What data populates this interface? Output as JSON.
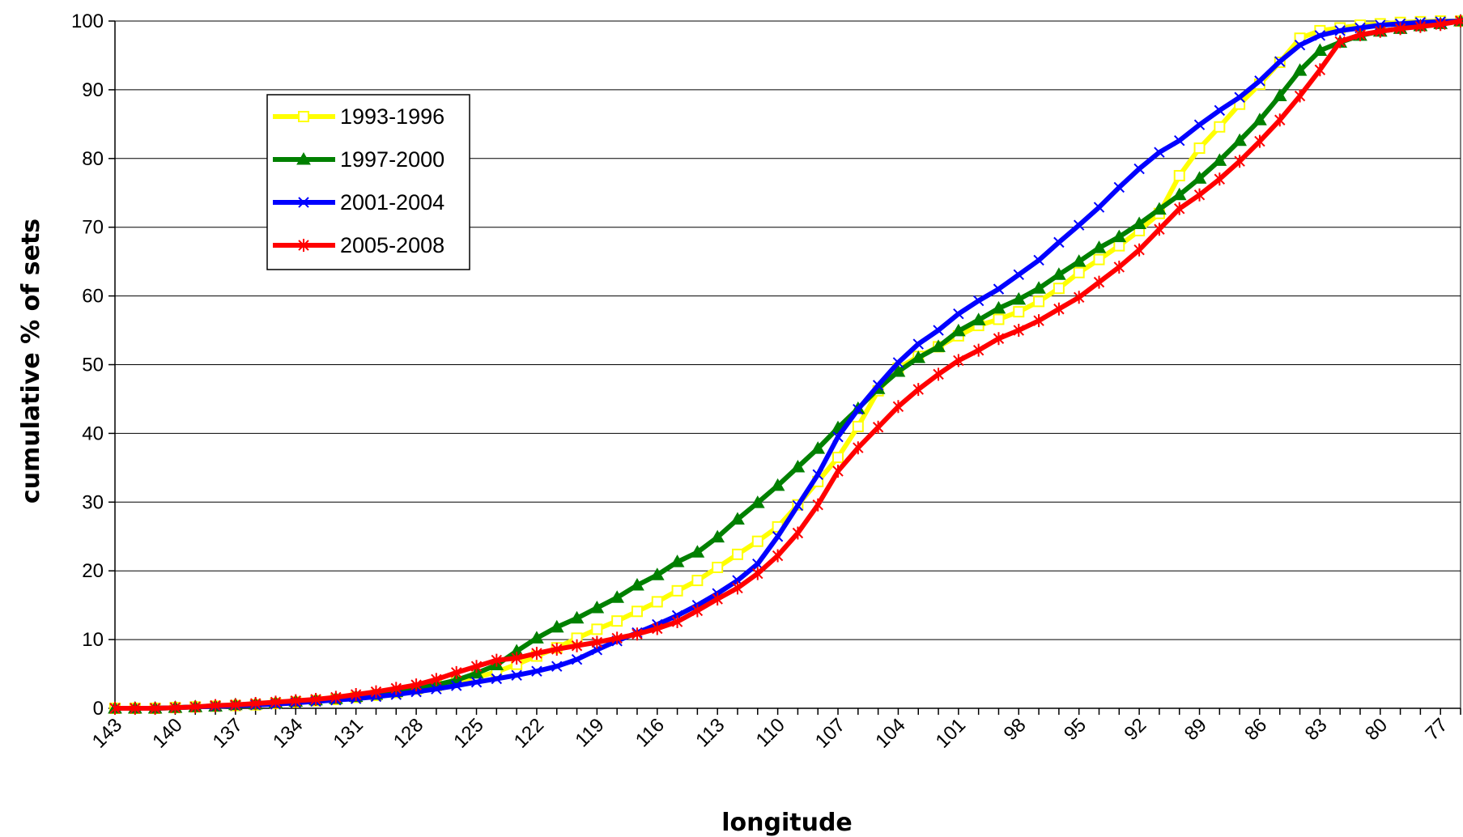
{
  "chart_data": {
    "type": "line",
    "xlabel": "longitude",
    "ylabel": "cumulative % of sets",
    "x_reversed": true,
    "xlim": [
      143,
      76
    ],
    "ylim": [
      0,
      100
    ],
    "yticks": [
      0,
      10,
      20,
      30,
      40,
      50,
      60,
      70,
      80,
      90,
      100
    ],
    "xticks": [
      143,
      140,
      137,
      134,
      131,
      128,
      125,
      122,
      119,
      116,
      113,
      110,
      107,
      104,
      101,
      98,
      95,
      92,
      89,
      86,
      83,
      80,
      77
    ],
    "grid": "horizontal",
    "legend_position": "upper-left",
    "x": [
      143,
      142,
      141,
      140,
      139,
      138,
      137,
      136,
      135,
      134,
      133,
      132,
      131,
      130,
      129,
      128,
      127,
      126,
      125,
      124,
      123,
      122,
      121,
      120,
      119,
      118,
      117,
      116,
      115,
      114,
      113,
      112,
      111,
      110,
      109,
      108,
      107,
      106,
      105,
      104,
      103,
      102,
      101,
      100,
      99,
      98,
      97,
      96,
      95,
      94,
      93,
      92,
      91,
      90,
      89,
      88,
      87,
      86,
      85,
      84,
      83,
      82,
      81,
      80,
      79,
      78,
      77,
      76
    ],
    "series": [
      {
        "name": "1993-1996",
        "color": "#ffff00",
        "marker": "square",
        "values": [
          0,
          0,
          0,
          0.1,
          0.2,
          0.3,
          0.4,
          0.5,
          0.7,
          0.9,
          1.1,
          1.3,
          1.6,
          1.9,
          2.3,
          2.8,
          3.3,
          3.9,
          4.5,
          5.3,
          6.4,
          7.6,
          8.8,
          10.2,
          11.5,
          12.7,
          14.1,
          15.5,
          17.1,
          18.6,
          20.5,
          22.4,
          24.3,
          26.4,
          29.6,
          33.0,
          36.5,
          41.0,
          46.2,
          49.5,
          51.2,
          52.6,
          54.2,
          55.7,
          56.6,
          57.7,
          59.2,
          61.1,
          63.4,
          65.3,
          67.3,
          69.5,
          72.0,
          77.5,
          81.5,
          84.6,
          87.9,
          90.8,
          94.0,
          97.5,
          98.6,
          99.0,
          99.4,
          99.6,
          99.8,
          99.9,
          100,
          100
        ]
      },
      {
        "name": "1997-2000",
        "color": "#008000",
        "marker": "triangle",
        "values": [
          0,
          0,
          0,
          0.1,
          0.2,
          0.3,
          0.5,
          0.6,
          0.8,
          1.0,
          1.2,
          1.4,
          1.7,
          2.0,
          2.4,
          2.9,
          3.4,
          4.1,
          5.1,
          6.3,
          8.3,
          10.2,
          11.8,
          13.1,
          14.6,
          16.1,
          17.9,
          19.4,
          21.3,
          22.7,
          24.9,
          27.5,
          29.9,
          32.4,
          35.1,
          37.8,
          40.8,
          43.6,
          46.5,
          49.0,
          51.0,
          52.6,
          54.9,
          56.5,
          58.2,
          59.5,
          61.1,
          63.1,
          65.0,
          67.0,
          68.6,
          70.5,
          72.6,
          74.7,
          77.1,
          79.7,
          82.6,
          85.6,
          89.1,
          92.8,
          95.7,
          96.9,
          97.9,
          98.5,
          98.9,
          99.3,
          99.6,
          100
        ]
      },
      {
        "name": "2001-2004",
        "color": "#0000ff",
        "marker": "x",
        "values": [
          0,
          0,
          0,
          0.1,
          0.2,
          0.3,
          0.4,
          0.5,
          0.6,
          0.8,
          1.0,
          1.2,
          1.4,
          1.7,
          2.0,
          2.4,
          2.8,
          3.3,
          3.8,
          4.3,
          4.8,
          5.4,
          6.1,
          7.1,
          8.5,
          9.8,
          11.0,
          12.2,
          13.5,
          15.0,
          16.7,
          18.6,
          21.0,
          25.0,
          29.5,
          34.0,
          39.5,
          43.5,
          47.0,
          50.3,
          53.0,
          55.0,
          57.4,
          59.3,
          61.0,
          63.1,
          65.2,
          67.8,
          70.3,
          72.9,
          75.8,
          78.5,
          80.9,
          82.6,
          84.9,
          87.0,
          88.9,
          91.3,
          94.1,
          96.5,
          97.9,
          98.6,
          99.0,
          99.4,
          99.6,
          99.8,
          99.9,
          100
        ]
      },
      {
        "name": "2005-2008",
        "color": "#ff0000",
        "marker": "asterisk",
        "values": [
          0,
          0,
          0,
          0.1,
          0.2,
          0.4,
          0.5,
          0.7,
          0.9,
          1.1,
          1.3,
          1.6,
          2.0,
          2.4,
          2.9,
          3.4,
          4.2,
          5.2,
          6.1,
          7.0,
          7.3,
          8.0,
          8.6,
          9.1,
          9.6,
          10.2,
          10.8,
          11.6,
          12.6,
          14.2,
          15.9,
          17.5,
          19.6,
          22.2,
          25.5,
          29.6,
          34.5,
          37.9,
          40.9,
          43.9,
          46.4,
          48.6,
          50.6,
          52.1,
          53.8,
          55.0,
          56.4,
          58.1,
          59.8,
          62.0,
          64.2,
          66.7,
          69.7,
          72.7,
          74.7,
          77.0,
          79.6,
          82.5,
          85.6,
          89.1,
          92.9,
          97.0,
          98.0,
          98.5,
          98.9,
          99.2,
          99.5,
          100
        ]
      }
    ]
  }
}
